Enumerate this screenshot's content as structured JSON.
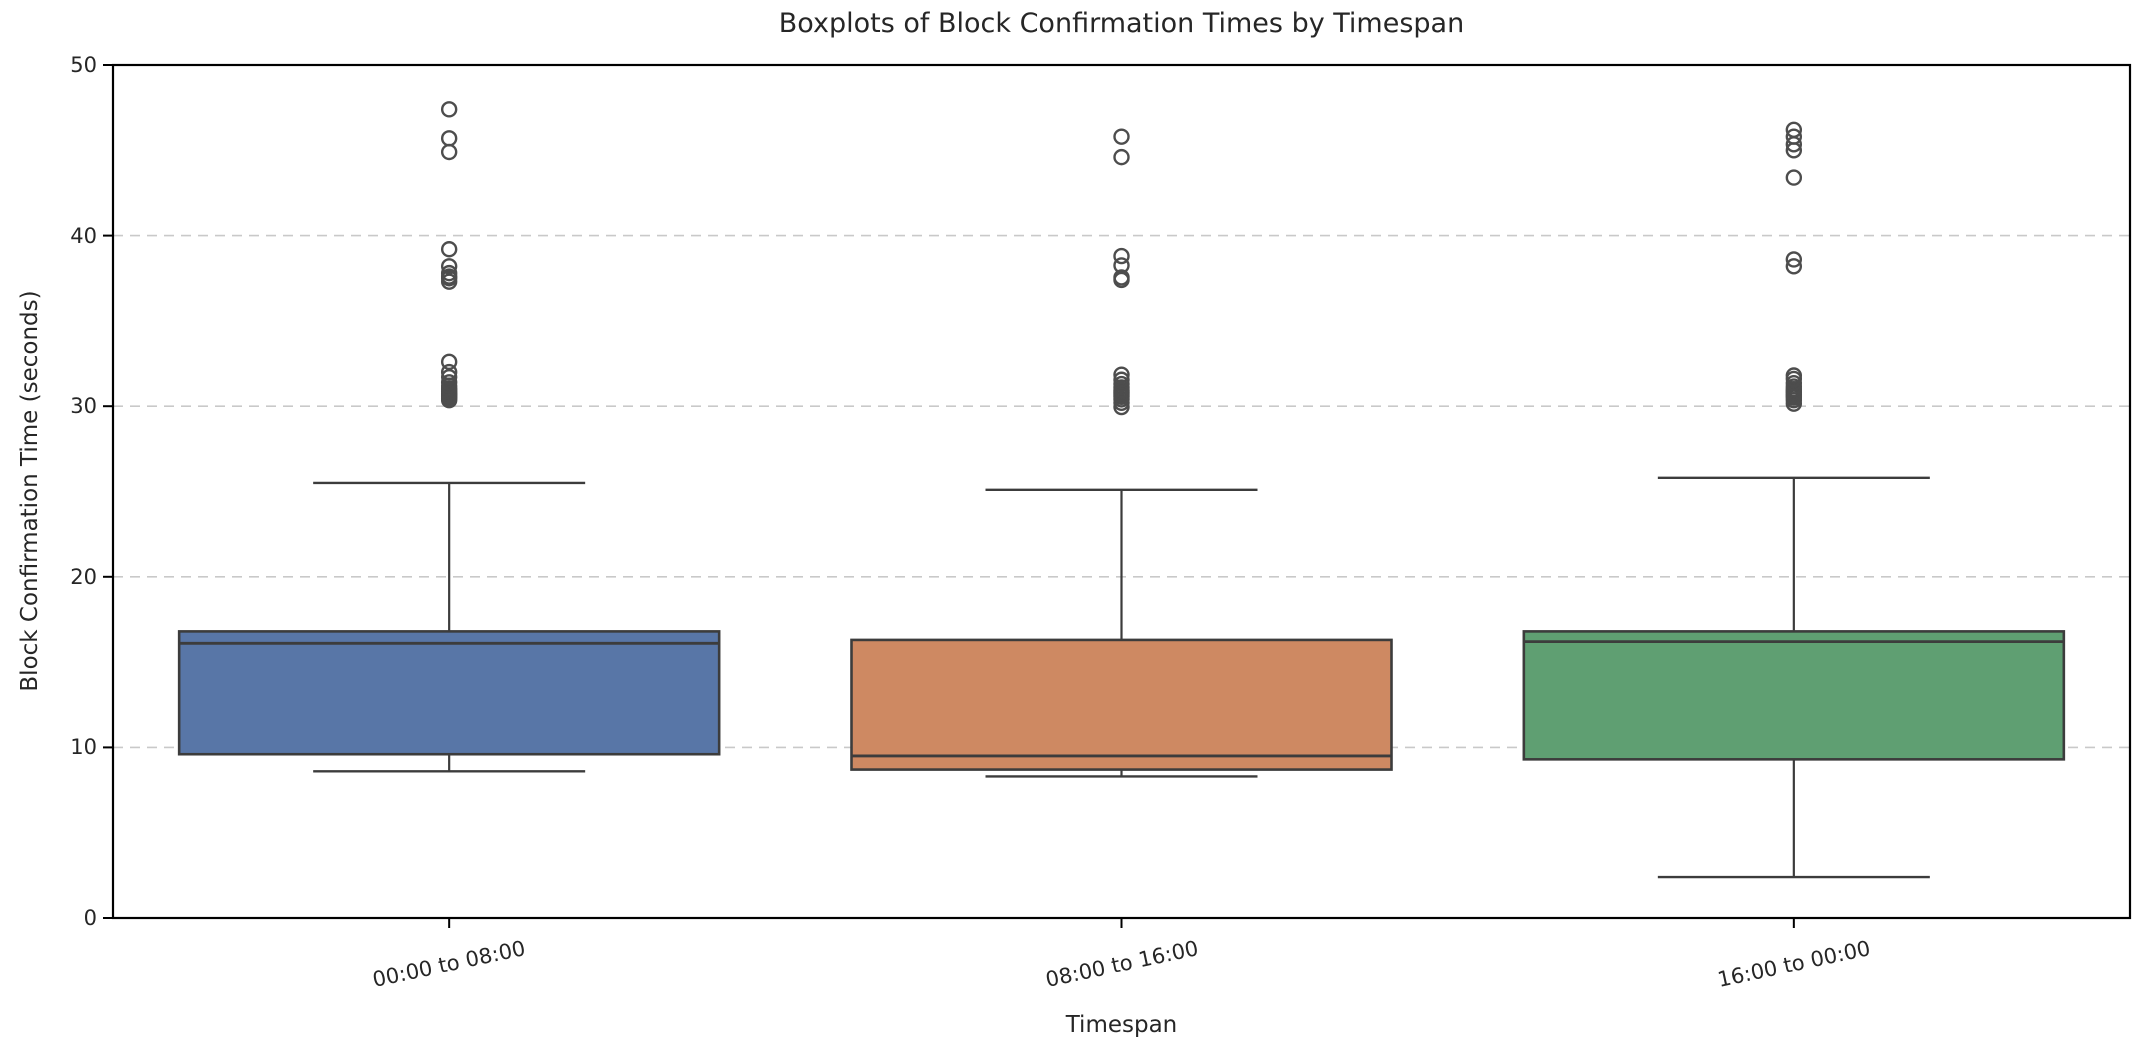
{
  "chart_data": {
    "type": "boxplot",
    "title": "Boxplots of Block Confirmation Times by Timespan",
    "xlabel": "Timespan",
    "ylabel": "Block Confirmation Time (seconds)",
    "ylim": [
      0,
      50
    ],
    "yticks": [
      0,
      10,
      20,
      30,
      40,
      50
    ],
    "grid": "horizontal-dashed",
    "legend": "none",
    "background": "#ffffff",
    "grid_color": "#c9c9c9",
    "spine_color": "#000000",
    "box_edge_color": "#3c3c3c",
    "outlier_edge_color": "#4d4d4d",
    "categories": [
      "00:00 to 08:00",
      "08:00 to 16:00",
      "16:00 to 00:00"
    ],
    "series": [
      {
        "name": "00:00 to 08:00",
        "color": "#5876A7",
        "whisker_low": 8.6,
        "q1": 9.6,
        "median": 16.1,
        "q3": 16.8,
        "whisker_high": 25.5,
        "outliers": [
          30.35,
          30.45,
          30.55,
          30.6,
          30.7,
          30.75,
          30.85,
          30.95,
          31.05,
          31.2,
          31.4,
          31.7,
          32.0,
          32.6,
          37.3,
          37.5,
          37.6,
          37.8,
          38.2,
          39.2,
          44.9,
          45.7,
          47.4
        ]
      },
      {
        "name": "08:00 to 16:00",
        "color": "#CE8962",
        "whisker_low": 8.3,
        "q1": 8.7,
        "median": 9.5,
        "q3": 16.3,
        "whisker_high": 25.1,
        "outliers": [
          29.95,
          30.2,
          30.4,
          30.55,
          30.65,
          30.75,
          30.85,
          30.95,
          31.1,
          31.3,
          31.55,
          31.85,
          37.4,
          37.55,
          38.25,
          38.8,
          44.6,
          45.8
        ]
      },
      {
        "name": "16:00 to 00:00",
        "color": "#5F9F72",
        "whisker_low": 2.4,
        "q1": 9.3,
        "median": 16.2,
        "q3": 16.8,
        "whisker_high": 25.8,
        "outliers": [
          30.15,
          30.35,
          30.5,
          30.6,
          30.7,
          30.8,
          30.9,
          31.0,
          31.15,
          31.35,
          31.6,
          31.8,
          38.2,
          38.6,
          43.4,
          45.0,
          45.35,
          45.8,
          46.2
        ]
      }
    ]
  }
}
